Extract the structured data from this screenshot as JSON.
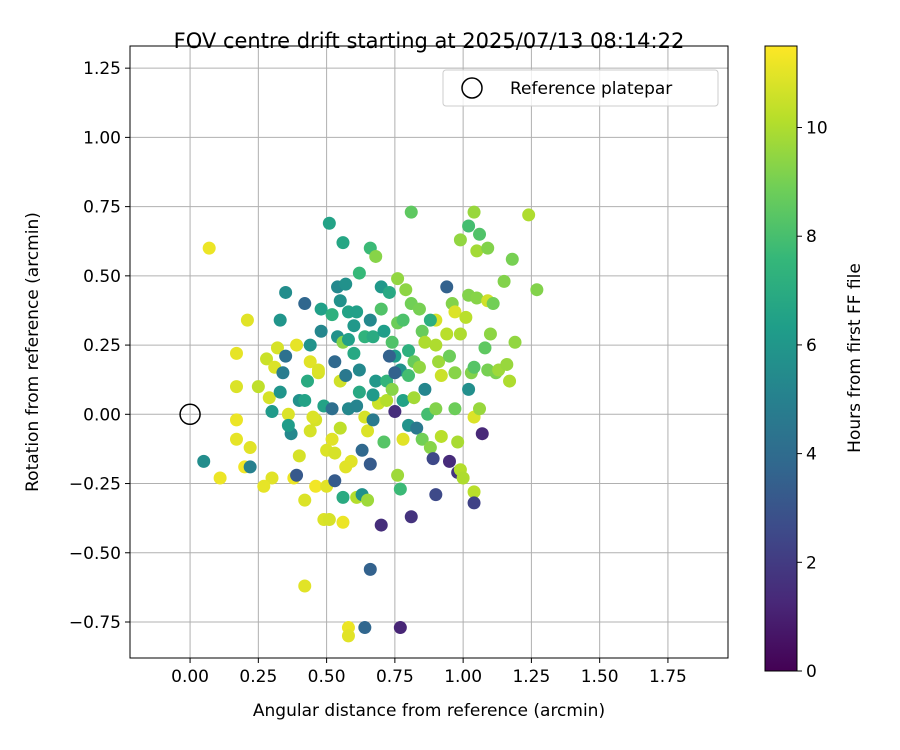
{
  "chart_data": {
    "type": "scatter",
    "title": "FOV centre drift starting at 2025/07/13 08:14:22",
    "xlabel": "Angular distance from reference (arcmin)",
    "ylabel": "Rotation from reference (arcmin)",
    "xlim": [
      -0.22,
      1.97
    ],
    "ylim": [
      -0.88,
      1.33
    ],
    "x_ticks": [
      0.0,
      0.25,
      0.5,
      0.75,
      1.0,
      1.25,
      1.5,
      1.75
    ],
    "x_tick_labels": [
      "0.00",
      "0.25",
      "0.50",
      "0.75",
      "1.00",
      "1.25",
      "1.50",
      "1.75"
    ],
    "y_ticks": [
      -0.75,
      -0.5,
      -0.25,
      0.0,
      0.25,
      0.5,
      0.75,
      1.0,
      1.25
    ],
    "y_tick_labels": [
      "−0.75",
      "−0.50",
      "−0.25",
      "0.00",
      "0.25",
      "0.50",
      "0.75",
      "1.00",
      "1.25"
    ],
    "grid": true,
    "legend": {
      "label": "Reference platepar",
      "placement": "top-right"
    },
    "reference_point": {
      "x": 0.0,
      "y": 0.0
    },
    "colorbar": {
      "label": "Hours from first FF file",
      "colormap": "viridis",
      "range": [
        0,
        11.5
      ],
      "ticks": [
        0,
        2,
        4,
        6,
        8,
        10
      ],
      "tick_labels": [
        "0",
        "2",
        "4",
        "6",
        "8",
        "10"
      ]
    },
    "points": [
      [
        0.07,
        0.6,
        11.2
      ],
      [
        0.21,
        0.34,
        11.0
      ],
      [
        0.17,
        0.22,
        11.1
      ],
      [
        0.17,
        0.1,
        10.9
      ],
      [
        0.17,
        -0.02,
        11.2
      ],
      [
        0.17,
        -0.09,
        11.1
      ],
      [
        0.22,
        -0.12,
        11.0
      ],
      [
        0.2,
        -0.19,
        11.3
      ],
      [
        0.11,
        -0.23,
        11.2
      ],
      [
        0.05,
        -0.17,
        5.6
      ],
      [
        0.22,
        -0.19,
        5.0
      ],
      [
        0.25,
        0.1,
        10.4
      ],
      [
        0.28,
        0.2,
        10.6
      ],
      [
        0.29,
        0.06,
        10.8
      ],
      [
        0.31,
        0.17,
        10.9
      ],
      [
        0.32,
        0.24,
        10.8
      ],
      [
        0.3,
        -0.23,
        11.0
      ],
      [
        0.27,
        -0.26,
        11.1
      ],
      [
        0.33,
        0.34,
        6.0
      ],
      [
        0.35,
        0.44,
        5.6
      ],
      [
        0.35,
        0.21,
        4.3
      ],
      [
        0.34,
        0.15,
        4.8
      ],
      [
        0.36,
        0.0,
        10.9
      ],
      [
        0.37,
        -0.07,
        5.4
      ],
      [
        0.4,
        0.05,
        5.8
      ],
      [
        0.4,
        -0.15,
        10.8
      ],
      [
        0.38,
        -0.23,
        11.2
      ],
      [
        0.39,
        -0.22,
        3.2
      ],
      [
        0.42,
        0.4,
        3.8
      ],
      [
        0.43,
        0.12,
        7.0
      ],
      [
        0.42,
        0.05,
        6.6
      ],
      [
        0.42,
        -0.31,
        10.9
      ],
      [
        0.42,
        -0.62,
        11.0
      ],
      [
        0.44,
        0.25,
        5.9
      ],
      [
        0.44,
        -0.06,
        10.8
      ],
      [
        0.46,
        -0.02,
        10.8
      ],
      [
        0.46,
        -0.26,
        11.3
      ],
      [
        0.48,
        0.38,
        6.5
      ],
      [
        0.48,
        0.3,
        5.3
      ],
      [
        0.47,
        0.15,
        10.8
      ],
      [
        0.49,
        0.03,
        6.6
      ],
      [
        0.49,
        -0.38,
        10.9
      ],
      [
        0.51,
        0.69,
        6.6
      ],
      [
        0.5,
        -0.13,
        10.9
      ],
      [
        0.5,
        -0.26,
        11.0
      ],
      [
        0.51,
        -0.38,
        10.8
      ],
      [
        0.52,
        0.36,
        7.3
      ],
      [
        0.52,
        0.02,
        4.2
      ],
      [
        0.53,
        -0.24,
        3.3
      ],
      [
        0.53,
        -0.14,
        10.8
      ],
      [
        0.54,
        0.46,
        5.4
      ],
      [
        0.54,
        0.28,
        5.8
      ],
      [
        0.55,
        0.12,
        10.7
      ],
      [
        0.55,
        -0.05,
        10.4
      ],
      [
        0.56,
        0.62,
        6.8
      ],
      [
        0.56,
        0.26,
        9.4
      ],
      [
        0.57,
        0.47,
        5.8
      ],
      [
        0.56,
        -0.3,
        7.0
      ],
      [
        0.56,
        -0.39,
        11.2
      ],
      [
        0.58,
        0.37,
        6.6
      ],
      [
        0.57,
        -0.19,
        11.0
      ],
      [
        0.58,
        0.02,
        5.4
      ],
      [
        0.58,
        -0.77,
        11.2
      ],
      [
        0.58,
        -0.8,
        11.0
      ],
      [
        0.6,
        0.22,
        6.9
      ],
      [
        0.61,
        0.37,
        6.5
      ],
      [
        0.61,
        0.03,
        5.2
      ],
      [
        0.61,
        -0.3,
        10.2
      ],
      [
        0.62,
        0.51,
        7.7
      ],
      [
        0.62,
        0.08,
        6.9
      ],
      [
        0.63,
        -0.29,
        5.8
      ],
      [
        0.63,
        -0.13,
        3.9
      ],
      [
        0.64,
        0.28,
        7.4
      ],
      [
        0.64,
        -0.77,
        3.8
      ],
      [
        0.65,
        -0.06,
        10.9
      ],
      [
        0.65,
        -0.31,
        9.8
      ],
      [
        0.66,
        0.6,
        7.8
      ],
      [
        0.66,
        0.34,
        5.4
      ],
      [
        0.66,
        -0.18,
        3.3
      ],
      [
        0.66,
        -0.56,
        3.6
      ],
      [
        0.68,
        0.57,
        9.4
      ],
      [
        0.67,
        0.28,
        7.0
      ],
      [
        0.68,
        0.12,
        6.1
      ],
      [
        0.69,
        0.04,
        10.6
      ],
      [
        0.7,
        0.46,
        6.1
      ],
      [
        0.7,
        -0.4,
        1.5
      ],
      [
        0.71,
        0.3,
        6.4
      ],
      [
        0.71,
        -0.1,
        8.4
      ],
      [
        0.72,
        0.12,
        7.5
      ],
      [
        0.72,
        0.05,
        10.2
      ],
      [
        0.73,
        0.44,
        6.9
      ],
      [
        0.74,
        0.26,
        8.3
      ],
      [
        0.74,
        0.09,
        9.4
      ],
      [
        0.75,
        0.01,
        1.5
      ],
      [
        0.75,
        0.21,
        6.4
      ],
      [
        0.76,
        0.49,
        9.6
      ],
      [
        0.76,
        0.33,
        8.9
      ],
      [
        0.76,
        -0.22,
        9.8
      ],
      [
        0.77,
        0.16,
        5.9
      ],
      [
        0.77,
        -0.27,
        7.8
      ],
      [
        0.77,
        -0.77,
        1.2
      ],
      [
        0.78,
        0.34,
        8.2
      ],
      [
        0.78,
        0.05,
        6.6
      ],
      [
        0.78,
        -0.09,
        11.0
      ],
      [
        0.79,
        0.45,
        9.5
      ],
      [
        0.8,
        0.23,
        7.3
      ],
      [
        0.8,
        -0.04,
        5.9
      ],
      [
        0.81,
        0.73,
        8.6
      ],
      [
        0.81,
        0.4,
        9.0
      ],
      [
        0.81,
        -0.37,
        1.7
      ],
      [
        0.82,
        0.19,
        8.8
      ],
      [
        0.82,
        0.06,
        9.9
      ],
      [
        0.83,
        -0.05,
        4.6
      ],
      [
        0.84,
        0.38,
        9.1
      ],
      [
        0.84,
        0.17,
        9.6
      ],
      [
        0.85,
        0.3,
        8.8
      ],
      [
        0.85,
        -0.09,
        9.0
      ],
      [
        0.86,
        0.26,
        10.1
      ],
      [
        0.87,
        0.0,
        8.0
      ],
      [
        0.88,
        -0.12,
        9.4
      ],
      [
        0.89,
        -0.16,
        2.5
      ],
      [
        0.9,
        0.34,
        10.8
      ],
      [
        0.9,
        0.25,
        10.1
      ],
      [
        0.9,
        0.02,
        9.3
      ],
      [
        0.9,
        -0.29,
        2.6
      ],
      [
        0.91,
        0.19,
        9.8
      ],
      [
        0.92,
        -0.08,
        10.3
      ],
      [
        0.92,
        0.14,
        10.6
      ],
      [
        0.94,
        0.46,
        3.6
      ],
      [
        0.94,
        0.29,
        10.3
      ],
      [
        0.95,
        0.21,
        8.9
      ],
      [
        0.95,
        -0.17,
        1.4
      ],
      [
        0.96,
        0.4,
        9.3
      ],
      [
        0.97,
        0.37,
        10.9
      ],
      [
        0.97,
        0.15,
        9.4
      ],
      [
        0.97,
        0.02,
        8.9
      ],
      [
        0.98,
        -0.1,
        10.0
      ],
      [
        0.98,
        -0.21,
        1.8
      ],
      [
        0.99,
        0.63,
        9.6
      ],
      [
        0.99,
        0.29,
        10.1
      ],
      [
        0.99,
        -0.2,
        10.2
      ],
      [
        1.0,
        -0.23,
        10.1
      ],
      [
        1.01,
        0.35,
        10.3
      ],
      [
        1.02,
        0.09,
        5.7
      ],
      [
        1.02,
        0.68,
        8.0
      ],
      [
        1.02,
        0.43,
        9.3
      ],
      [
        1.03,
        0.15,
        9.3
      ],
      [
        1.04,
        0.73,
        9.7
      ],
      [
        1.04,
        0.17,
        8.4
      ],
      [
        1.04,
        -0.01,
        10.9
      ],
      [
        1.04,
        -0.28,
        10.3
      ],
      [
        1.04,
        -0.32,
        2.3
      ],
      [
        1.05,
        0.42,
        9.4
      ],
      [
        1.05,
        0.59,
        9.9
      ],
      [
        1.06,
        0.65,
        8.3
      ],
      [
        1.06,
        0.02,
        9.7
      ],
      [
        1.07,
        -0.07,
        1.3
      ],
      [
        1.08,
        0.24,
        8.6
      ],
      [
        1.09,
        0.41,
        10.7
      ],
      [
        1.09,
        0.6,
        9.3
      ],
      [
        1.09,
        0.16,
        9.1
      ],
      [
        1.1,
        0.29,
        9.5
      ],
      [
        1.11,
        0.4,
        9.0
      ],
      [
        1.12,
        0.15,
        9.2
      ],
      [
        1.13,
        0.16,
        9.8
      ],
      [
        1.15,
        0.48,
        9.3
      ],
      [
        1.16,
        0.18,
        9.7
      ],
      [
        1.17,
        0.12,
        10.1
      ],
      [
        1.18,
        0.56,
        9.1
      ],
      [
        1.19,
        0.26,
        9.6
      ],
      [
        1.24,
        0.72,
        10.1
      ],
      [
        1.27,
        0.45,
        9.3
      ],
      [
        0.59,
        -0.17,
        11.0
      ],
      [
        0.64,
        -0.01,
        10.8
      ],
      [
        0.67,
        0.07,
        6.2
      ],
      [
        0.75,
        0.15,
        3.6
      ],
      [
        0.7,
        0.38,
        8.3
      ],
      [
        0.45,
        -0.01,
        10.9
      ],
      [
        0.36,
        -0.04,
        6.3
      ],
      [
        0.33,
        0.08,
        6.0
      ],
      [
        0.53,
        0.19,
        3.9
      ],
      [
        0.6,
        0.32,
        6.1
      ],
      [
        0.62,
        0.16,
        5.4
      ],
      [
        0.58,
        0.27,
        6.5
      ],
      [
        0.86,
        0.09,
        5.3
      ],
      [
        0.88,
        0.34,
        7.2
      ],
      [
        0.52,
        -0.09,
        11.0
      ],
      [
        0.55,
        0.41,
        5.8
      ],
      [
        0.73,
        0.21,
        3.6
      ],
      [
        0.8,
        0.14,
        8.0
      ],
      [
        0.44,
        0.19,
        11.0
      ],
      [
        0.47,
        0.16,
        10.9
      ],
      [
        0.67,
        -0.02,
        4.7
      ],
      [
        0.57,
        0.14,
        4.6
      ],
      [
        0.39,
        0.25,
        11.1
      ],
      [
        0.3,
        0.01,
        6.2
      ]
    ]
  }
}
